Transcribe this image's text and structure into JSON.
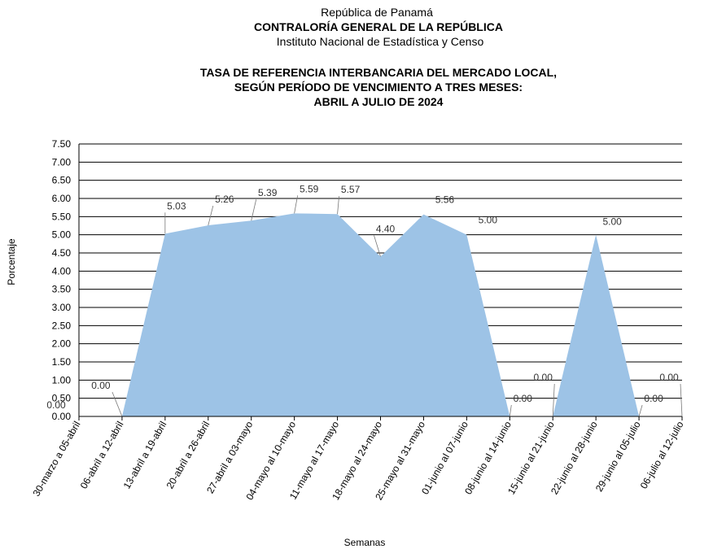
{
  "header": {
    "line1": "República de Panamá",
    "line2": "CONTRALORÍA GENERAL DE LA REPÚBLICA",
    "line3": "Instituto Nacional de Estadística y Censo"
  },
  "chart_data": {
    "type": "area",
    "title": [
      "TASA DE REFERENCIA INTERBANCARIA DEL MERCADO LOCAL,",
      "SEGÚN PERÍODO DE VENCIMIENTO A TRES MESES:",
      "ABRIL A JULIO DE 2024"
    ],
    "xlabel": "Semanas",
    "ylabel": "Porcentaje",
    "ylim": [
      0,
      7.5
    ],
    "yticks": [
      "0.00",
      "0.50",
      "1.00",
      "1.50",
      "2.00",
      "2.50",
      "3.00",
      "3.50",
      "4.00",
      "4.50",
      "5.00",
      "5.50",
      "6.00",
      "6.50",
      "7.00",
      "7.50"
    ],
    "grid": true,
    "legend": "none",
    "fill_color": "#9dc3e6",
    "categories": [
      "30-marzo a 05-abril",
      "06-abril a 12-abril",
      "13-abril a 19-abril",
      "20-abril a 26-abril",
      "27-abril a 03-mayo",
      "04-mayo al 10-mayo",
      "11-mayo al 17-mayo",
      "18-mayo al 24-mayo",
      "25-mayo al 31-mayo",
      "01-junio al 07-junio",
      "08-junio al 14-junio",
      "15-junio al 21-junio",
      "22-junio al 28-junio",
      "29-junio al 05-julio",
      "06-julio al 12-julio"
    ],
    "values": [
      0.0,
      0.0,
      5.03,
      5.26,
      5.39,
      5.59,
      5.57,
      4.4,
      5.56,
      5.0,
      0.0,
      0.0,
      5.0,
      0.0,
      0.0
    ],
    "value_labels": [
      "0.00",
      "0.00",
      "5.03",
      "5.26",
      "5.39",
      "5.59",
      "5.57",
      "4.40",
      "5.56",
      "5.00",
      "0.00",
      "0.00",
      "5.00",
      "0.00",
      "0.00"
    ]
  }
}
